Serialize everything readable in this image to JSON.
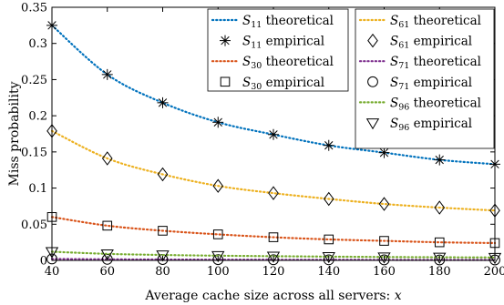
{
  "chart_data": {
    "type": "line",
    "title": "",
    "xlabel": "Average cache size across all servers: ",
    "xlabel_var": "x",
    "ylabel": "Miss probability",
    "xlim": [
      40,
      200
    ],
    "ylim": [
      0,
      0.35
    ],
    "xticks": [
      "40",
      "60",
      "80",
      "100",
      "120",
      "140",
      "160",
      "180",
      "200"
    ],
    "yticks": [
      "0",
      "0.05",
      "0.1",
      "0.15",
      "0.2",
      "0.25",
      "0.3",
      "0.35"
    ],
    "grid": false,
    "legend": "top-right, two columns",
    "x": [
      40,
      60,
      80,
      100,
      120,
      140,
      160,
      180,
      200
    ],
    "series": [
      {
        "base": "S",
        "sub": "11",
        "suffix": "theoretical",
        "style": "dotted",
        "color": "#0072BD",
        "values": [
          0.325,
          0.257,
          0.218,
          0.191,
          0.174,
          0.159,
          0.149,
          0.139,
          0.133
        ]
      },
      {
        "base": "S",
        "sub": "11",
        "suffix": "empirical",
        "style": "marker",
        "marker": "asterisk",
        "color": "#000000",
        "values": [
          0.325,
          0.257,
          0.218,
          0.191,
          0.174,
          0.159,
          0.149,
          0.139,
          0.133
        ]
      },
      {
        "base": "S",
        "sub": "30",
        "suffix": "theoretical",
        "style": "dotted",
        "color": "#D95319",
        "values": [
          0.06,
          0.048,
          0.041,
          0.036,
          0.032,
          0.029,
          0.027,
          0.025,
          0.024
        ]
      },
      {
        "base": "S",
        "sub": "30",
        "suffix": "empirical",
        "style": "marker",
        "marker": "square",
        "color": "#000000",
        "values": [
          0.06,
          0.048,
          0.041,
          0.036,
          0.032,
          0.029,
          0.027,
          0.025,
          0.024
        ]
      },
      {
        "base": "S",
        "sub": "61",
        "suffix": "theoretical",
        "style": "dotted",
        "color": "#EDB120",
        "values": [
          0.179,
          0.141,
          0.119,
          0.103,
          0.093,
          0.085,
          0.078,
          0.073,
          0.069
        ]
      },
      {
        "base": "S",
        "sub": "61",
        "suffix": "empirical",
        "style": "marker",
        "marker": "diamond",
        "color": "#000000",
        "values": [
          0.179,
          0.141,
          0.119,
          0.103,
          0.093,
          0.085,
          0.078,
          0.073,
          0.069
        ]
      },
      {
        "base": "S",
        "sub": "71",
        "suffix": "theoretical",
        "style": "dotted",
        "color": "#7E2F8E",
        "values": [
          0.002,
          0.0015,
          0.0012,
          0.001,
          0.0009,
          0.0008,
          0.0007,
          0.0006,
          0.0006
        ]
      },
      {
        "base": "S",
        "sub": "71",
        "suffix": "empirical",
        "style": "marker",
        "marker": "circle",
        "color": "#000000",
        "values": [
          0.002,
          0.0015,
          0.0012,
          0.001,
          0.0009,
          0.0008,
          0.0007,
          0.0006,
          0.0006
        ]
      },
      {
        "base": "S",
        "sub": "96",
        "suffix": "theoretical",
        "style": "dotted",
        "color": "#77AC30",
        "values": [
          0.012,
          0.009,
          0.0075,
          0.0065,
          0.0058,
          0.0052,
          0.0047,
          0.0043,
          0.004
        ]
      },
      {
        "base": "S",
        "sub": "96",
        "suffix": "empirical",
        "style": "marker",
        "marker": "triangle-down",
        "color": "#000000",
        "values": [
          0.012,
          0.009,
          0.0075,
          0.0065,
          0.0058,
          0.0052,
          0.0047,
          0.0043,
          0.004
        ]
      }
    ]
  }
}
